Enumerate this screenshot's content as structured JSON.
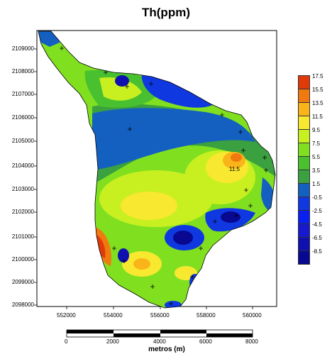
{
  "title": "Th(ppm)",
  "y_ticks": [
    "2109000",
    "2108000",
    "2107000",
    "2106000",
    "2105000",
    "2104000",
    "2103000",
    "2102000",
    "2101000",
    "2100000",
    "2099000",
    "2098000"
  ],
  "x_ticks": [
    "552000",
    "554000",
    "556000",
    "558000",
    "560000"
  ],
  "legend": {
    "labels": [
      "17.5",
      "15.5",
      "13.5",
      "11.5",
      "9.5",
      "7.5",
      "5.5",
      "3.5",
      "1.5",
      "-0.5",
      "-2.5",
      "-4.5",
      "-6.5",
      "-8.5"
    ],
    "colors": [
      "#e03a0a",
      "#f07a10",
      "#f8b418",
      "#f8e830",
      "#c8f020",
      "#80e020",
      "#48c030",
      "#3aa040",
      "#1460c0",
      "#1038e0",
      "#0a20f0",
      "#1818d0",
      "#1010b0",
      "#080890"
    ]
  },
  "contour_label": "11.5",
  "scale_bar": {
    "labels": [
      "0",
      "2000",
      "4000",
      "6000",
      "8000"
    ],
    "title": "metros (m)"
  }
}
